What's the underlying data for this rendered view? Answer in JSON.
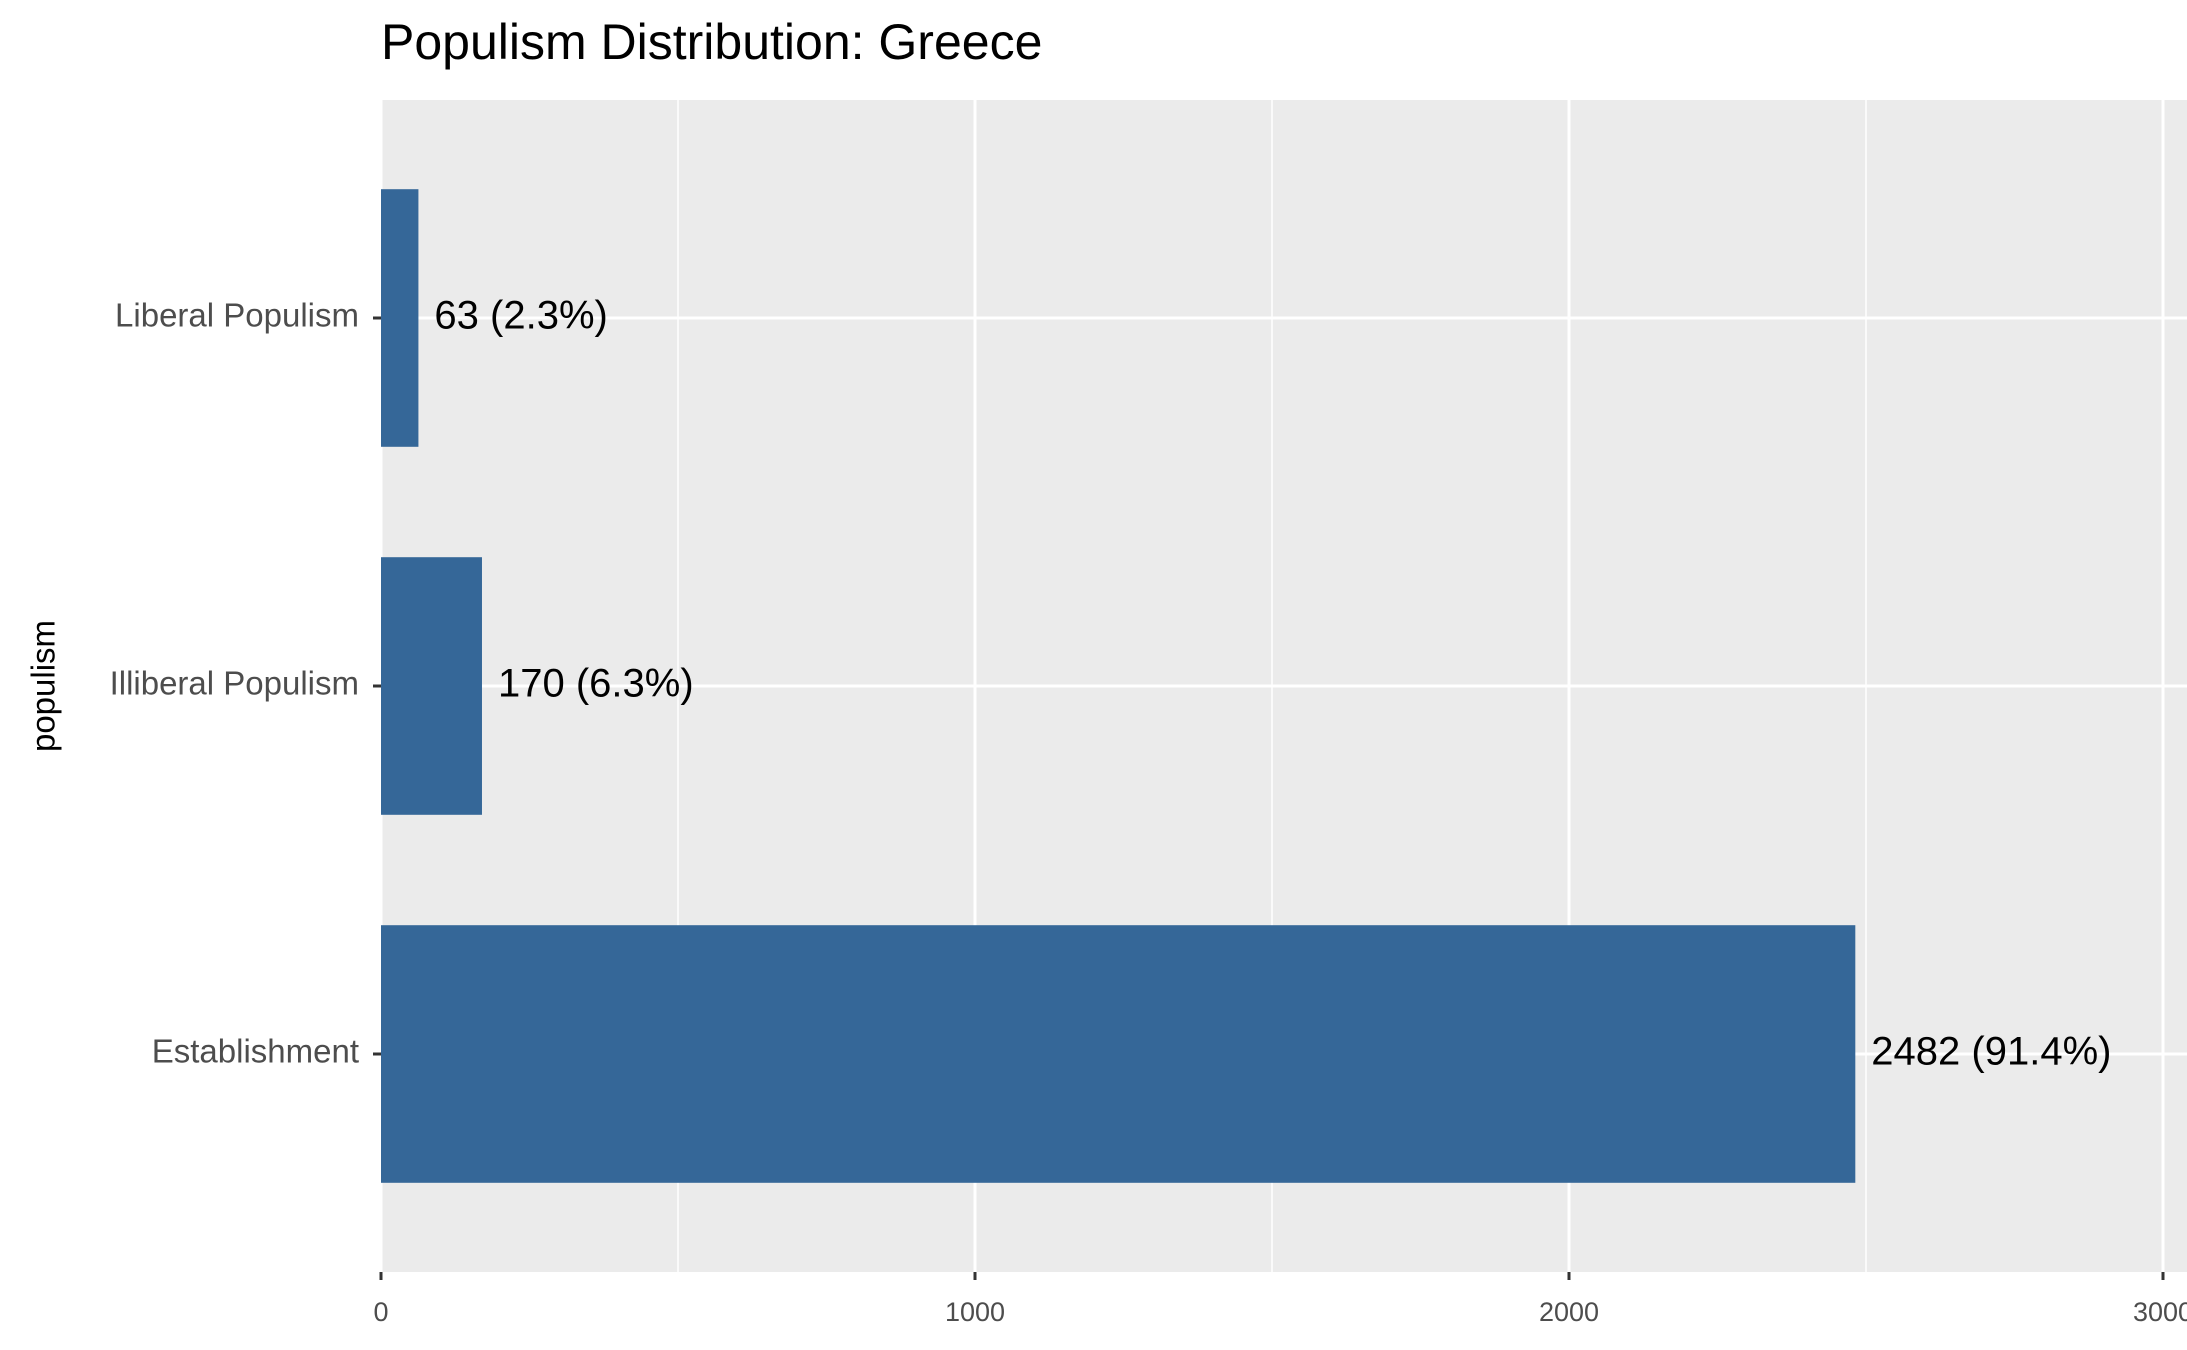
{
  "chart_data": {
    "type": "bar",
    "orientation": "horizontal",
    "title": "Populism Distribution: Greece",
    "y_label": "populism",
    "categories": [
      "Liberal Populism",
      "Illiberal Populism",
      "Establishment"
    ],
    "values": [
      63,
      170,
      2482
    ],
    "value_labels": [
      "63 (2.3%)",
      "170 (6.3%)",
      "2482 (91.4%)"
    ],
    "color": "#356798",
    "xlim": [
      0,
      3000
    ],
    "xticks": [
      0,
      1000,
      2000,
      3000
    ],
    "grid": true
  }
}
